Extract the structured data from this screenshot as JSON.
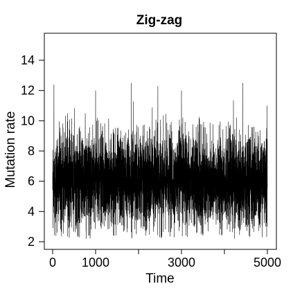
{
  "chart_data": {
    "type": "line",
    "title": "Zig-zag",
    "xlabel": "Time",
    "ylabel": "Mutation rate",
    "xlim": [
      0,
      5000
    ],
    "ylim": [
      2,
      15
    ],
    "x_ticks": [
      0,
      1000,
      2000,
      3000,
      4000,
      5000
    ],
    "x_tick_labels": [
      "0",
      "1000",
      "",
      "3000",
      "",
      "5000"
    ],
    "y_ticks": [
      2,
      4,
      6,
      8,
      10,
      12,
      14
    ],
    "y_tick_labels": [
      "2",
      "4",
      "6",
      "8",
      "10",
      "12",
      "14"
    ],
    "grid": false,
    "legend": "none",
    "line_color": "#000000",
    "series": [
      {
        "x_start": 0,
        "x_end": 5000,
        "n_points": 5001,
        "mean": 6.0,
        "typical_band": [
          3.5,
          9.5
        ],
        "min_observed": 2.2,
        "max_observed": 12.5,
        "peaks": [
          {
            "x": 30,
            "y": 12.4
          },
          {
            "x": 1000,
            "y": 12.0
          },
          {
            "x": 1830,
            "y": 12.5
          },
          {
            "x": 2450,
            "y": 12.3
          },
          {
            "x": 3000,
            "y": 12.0
          },
          {
            "x": 4430,
            "y": 12.5
          },
          {
            "x": 4990,
            "y": 11.0
          }
        ],
        "troughs": [
          {
            "x": 780,
            "y": 2.2
          },
          {
            "x": 1950,
            "y": 2.5
          },
          {
            "x": 3620,
            "y": 2.7
          },
          {
            "x": 4330,
            "y": 2.9
          }
        ]
      }
    ]
  }
}
